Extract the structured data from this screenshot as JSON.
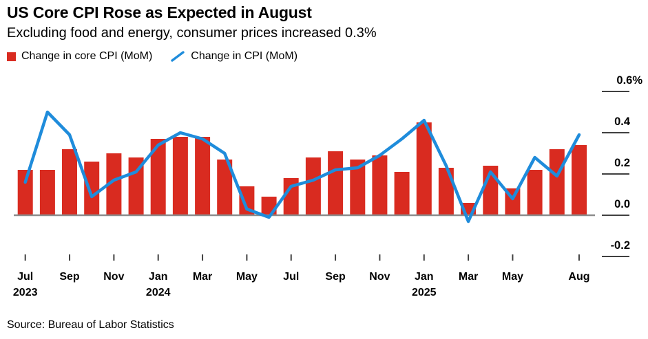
{
  "header": {
    "title": "US Core CPI Rose as Expected in August",
    "subtitle": "Excluding food and energy, consumer prices increased 0.3%"
  },
  "legend": [
    {
      "label": "Change in core CPI (MoM)",
      "marker": "square",
      "color": "#d92b20"
    },
    {
      "label": "Change in CPI (MoM)",
      "marker": "line",
      "color": "#1f8cdb"
    }
  ],
  "footer": {
    "source": "Source: Bureau of Labor Statistics"
  },
  "chart_data": {
    "type": "combo",
    "x": [
      "Jul 2023",
      "Aug 2023",
      "Sep 2023",
      "Oct 2023",
      "Nov 2023",
      "Dec 2023",
      "Jan 2024",
      "Feb 2024",
      "Mar 2024",
      "Apr 2024",
      "May 2024",
      "Jun 2024",
      "Jul 2024",
      "Aug 2024",
      "Sep 2024",
      "Oct 2024",
      "Nov 2024",
      "Dec 2024",
      "Jan 2025",
      "Feb 2025",
      "Mar 2025",
      "Apr 2025",
      "May 2025",
      "Jun 2025",
      "Jul 2025",
      "Aug 2025"
    ],
    "series": [
      {
        "name": "Change in core CPI (MoM)",
        "type": "bar",
        "color": "#d92b20",
        "values": [
          0.22,
          0.22,
          0.32,
          0.26,
          0.3,
          0.28,
          0.37,
          0.38,
          0.38,
          0.27,
          0.14,
          0.09,
          0.18,
          0.28,
          0.31,
          0.27,
          0.29,
          0.21,
          0.45,
          0.23,
          0.06,
          0.24,
          0.13,
          0.22,
          0.32,
          0.34
        ]
      },
      {
        "name": "Change in CPI (MoM)",
        "type": "line",
        "color": "#1f8cdb",
        "values": [
          0.16,
          0.5,
          0.39,
          0.09,
          0.17,
          0.21,
          0.34,
          0.4,
          0.37,
          0.3,
          0.03,
          -0.01,
          0.14,
          0.17,
          0.22,
          0.23,
          0.29,
          0.37,
          0.46,
          0.24,
          -0.03,
          0.21,
          0.08,
          0.28,
          0.19,
          0.39
        ]
      }
    ],
    "ylim": [
      -0.28,
      0.68
    ],
    "unit": "%",
    "grid": false,
    "legend_position": "top-left",
    "y_ticks": [
      {
        "value": 0.6,
        "label": "0.6%"
      },
      {
        "value": 0.4,
        "label": "0.4"
      },
      {
        "value": 0.2,
        "label": "0.2"
      },
      {
        "value": 0.0,
        "label": "0.0"
      },
      {
        "value": -0.2,
        "label": "-0.2"
      }
    ],
    "x_ticks": [
      {
        "index": 0,
        "label": "Jul",
        "year": "2023"
      },
      {
        "index": 2,
        "label": "Sep"
      },
      {
        "index": 4,
        "label": "Nov"
      },
      {
        "index": 6,
        "label": "Jan",
        "year": "2024"
      },
      {
        "index": 8,
        "label": "Mar"
      },
      {
        "index": 10,
        "label": "May"
      },
      {
        "index": 12,
        "label": "Jul"
      },
      {
        "index": 14,
        "label": "Sep"
      },
      {
        "index": 16,
        "label": "Nov"
      },
      {
        "index": 18,
        "label": "Jan",
        "year": "2025"
      },
      {
        "index": 20,
        "label": "Mar"
      },
      {
        "index": 22,
        "label": "May"
      },
      {
        "index": 25,
        "label": "Aug"
      }
    ],
    "axis_color": "#8c8c8c",
    "tick_color": "#404040"
  }
}
